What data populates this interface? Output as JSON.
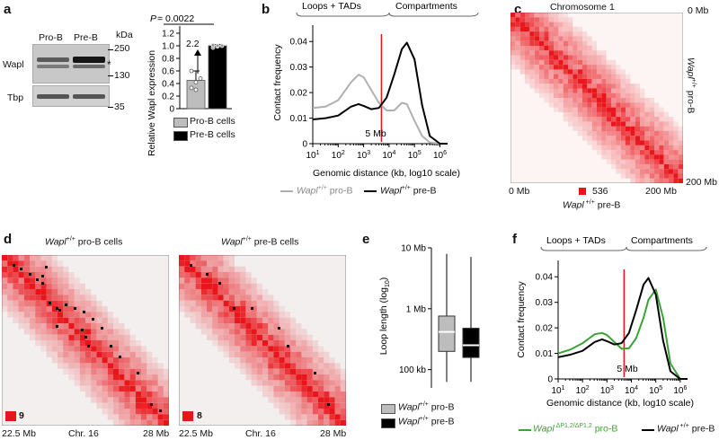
{
  "panel_labels": {
    "a": "a",
    "b": "b",
    "c": "c",
    "d": "d",
    "e": "e",
    "f": "f"
  },
  "panel_a": {
    "lanes": [
      "Pro-B",
      "Pre-B"
    ],
    "kda_label": "kDa",
    "markers": [
      "250",
      "130",
      "35"
    ],
    "wapl_label": "Wapl",
    "tbp_label": "Tbp",
    "asterisk": "*",
    "p_prefix": "P",
    "p_value": "= 0.0022",
    "fold_change": "2.2",
    "legend": [
      "Pro-B cells",
      "Pre-B cells"
    ],
    "colors": {
      "pro": "#bdbdbd",
      "pre": "#000000"
    }
  },
  "panel_b": {
    "header": [
      "Loops + TADs",
      "Compartments"
    ],
    "marker_label": "5 Mb",
    "legend_pro_gene": "Wapl",
    "legend_pro_sup": "+/+",
    "legend_pro_rest": " pro-B",
    "legend_pre_gene": "Wapl",
    "legend_pre_sup": "+/+",
    "legend_pre_rest": " pre-B"
  },
  "panel_c": {
    "title": "Chromosome 1",
    "top_right": "0 Mb",
    "bottom_right": "200 Mb",
    "bottom_left": "0 Mb",
    "bottom_mid_right": "200 Mb",
    "scale_value": "536",
    "side_label_gene": "Wapl",
    "side_label_sup": "+/+",
    "side_label_rest": " pro-B",
    "bottom_label_gene": "Wapl",
    "bottom_label_sup": " +/+",
    "bottom_label_rest": " pre-B"
  },
  "panel_d": {
    "left_title_gene": "Wapl",
    "left_title_sup": "+/+",
    "left_title_rest": " pro-B cells",
    "right_title_gene": "Wapl",
    "right_title_sup": "+/+",
    "right_title_rest": " pre-B cells",
    "left_scale": "9",
    "right_scale": "8",
    "axis_left": "22.5 Mb",
    "axis_mid": "Chr. 16",
    "axis_right": "28 Mb"
  },
  "panel_e": {
    "ylabel": "Loop length (log",
    "ylabel_sub": "10",
    "ylabel_end": ")",
    "yticks": [
      "10 Mb",
      "1 Mb",
      "100 kb"
    ],
    "legend_pro_gene": "Wapl",
    "legend_pro_sup": "+/+",
    "legend_pro_rest": " pro-B",
    "legend_pre_gene": "Wapl",
    "legend_pre_sup": "+/+",
    "legend_pre_rest": " pre-B"
  },
  "panel_f": {
    "header": [
      "Loops + TADs",
      "Compartments"
    ],
    "marker_label": "5 Mb",
    "legend_mut_gene": "Wapl",
    "legend_mut_sup": " ΔP1,2/ΔP1,2",
    "legend_mut_rest": " pro-B",
    "legend_wt_gene": "Wapl",
    "legend_wt_sup": " +/+",
    "legend_wt_rest": " pre-B"
  },
  "chart_data": [
    {
      "type": "bar",
      "panel": "a",
      "title": "",
      "ylabel": "Relative Wapl expression",
      "categories": [
        "Pro-B cells",
        "Pre-B cells"
      ],
      "values": [
        0.45,
        1.0
      ],
      "errors": [
        0.15,
        0.02
      ],
      "points": [
        [
          0.33,
          0.42,
          0.48,
          0.6,
          0.3
        ],
        [
          0.97,
          0.99,
          1.0,
          1.01,
          1.0
        ]
      ],
      "yticks": [
        "0",
        "0.2",
        "0.4",
        "0.6",
        "0.8",
        "1.0",
        "1.2"
      ],
      "ylim": [
        0,
        1.2
      ]
    },
    {
      "type": "line",
      "panel": "b",
      "xlabel": "Genomic distance (kb, log10 scale)",
      "ylabel": "Contact frequency",
      "xticks": [
        "10^1",
        "10^2",
        "10^3",
        "10^4",
        "10^5",
        "10^6"
      ],
      "yticks": [
        "0",
        "0.01",
        "0.02",
        "0.03",
        "0.04"
      ],
      "xlim": [
        1,
        6.3
      ],
      "ylim": [
        0,
        0.045
      ],
      "marker_log_kb": 3.7,
      "series": [
        {
          "name": "Wapl+/+ pro-B",
          "color": "#b0b0b0",
          "x": [
            1,
            1.5,
            2,
            2.5,
            2.8,
            3.0,
            3.3,
            3.6,
            3.9,
            4.2,
            4.5,
            4.7,
            5.0,
            5.3,
            5.6,
            6.0,
            6.3
          ],
          "y": [
            0.014,
            0.0145,
            0.017,
            0.024,
            0.027,
            0.026,
            0.021,
            0.016,
            0.013,
            0.013,
            0.016,
            0.0155,
            0.009,
            0.003,
            0.0005,
            0,
            0
          ]
        },
        {
          "name": "Wapl+/+ pre-B",
          "color": "#000000",
          "x": [
            1,
            1.5,
            2,
            2.5,
            2.8,
            3.0,
            3.3,
            3.6,
            3.9,
            4.2,
            4.5,
            4.7,
            5.0,
            5.3,
            5.6,
            6.0,
            6.3
          ],
          "y": [
            0.0095,
            0.01,
            0.011,
            0.0145,
            0.0155,
            0.0148,
            0.0135,
            0.014,
            0.018,
            0.027,
            0.037,
            0.0395,
            0.033,
            0.015,
            0.003,
            0,
            0
          ]
        }
      ]
    },
    {
      "type": "box",
      "panel": "e",
      "ylabel": "Loop length (log10)",
      "yticks": [
        "10 Mb",
        "1 Mb",
        "100 kb"
      ],
      "ylim_log_bp": [
        4.7,
        7
      ],
      "series": [
        {
          "name": "Wapl+/+ pro-B",
          "color": "#bdbdbd",
          "min_log_bp": 4.8,
          "q1_log_bp": 5.3,
          "median_log_bp": 5.62,
          "q3_log_bp": 5.88,
          "max_log_bp": 6.9
        },
        {
          "name": "Wapl+/+ pre-B",
          "color": "#000000",
          "min_log_bp": 4.8,
          "q1_log_bp": 5.2,
          "median_log_bp": 5.4,
          "q3_log_bp": 5.68,
          "max_log_bp": 6.85
        }
      ]
    },
    {
      "type": "line",
      "panel": "f",
      "xlabel": "Genomic distance (kb, log10 scale)",
      "ylabel": "Contact frequency",
      "xticks": [
        "10^1",
        "10^2",
        "10^3",
        "10^4",
        "10^5",
        "10^6"
      ],
      "yticks": [
        "0",
        "0.01",
        "0.02",
        "0.03",
        "0.04"
      ],
      "xlim": [
        1,
        6.3
      ],
      "ylim": [
        0,
        0.045
      ],
      "marker_log_kb": 3.7,
      "series": [
        {
          "name": "Wapl ΔP1,2/ΔP1,2 pro-B",
          "color": "#3aa335",
          "x": [
            1,
            1.5,
            2,
            2.5,
            2.8,
            3.0,
            3.3,
            3.6,
            3.9,
            4.2,
            4.5,
            4.7,
            5.0,
            5.3,
            5.6,
            6.0,
            6.3
          ],
          "y": [
            0.01,
            0.0115,
            0.014,
            0.0175,
            0.018,
            0.0172,
            0.0145,
            0.0118,
            0.012,
            0.016,
            0.024,
            0.031,
            0.035,
            0.024,
            0.006,
            0,
            0
          ]
        },
        {
          "name": "Wapl+/+ pre-B",
          "color": "#000000",
          "x": [
            1,
            1.5,
            2,
            2.5,
            2.8,
            3.0,
            3.3,
            3.6,
            3.9,
            4.2,
            4.5,
            4.7,
            5.0,
            5.3,
            5.6,
            6.0,
            6.3
          ],
          "y": [
            0.0085,
            0.0095,
            0.011,
            0.0145,
            0.0155,
            0.0148,
            0.0135,
            0.014,
            0.018,
            0.027,
            0.037,
            0.0395,
            0.033,
            0.015,
            0.003,
            0,
            0
          ]
        }
      ]
    }
  ]
}
